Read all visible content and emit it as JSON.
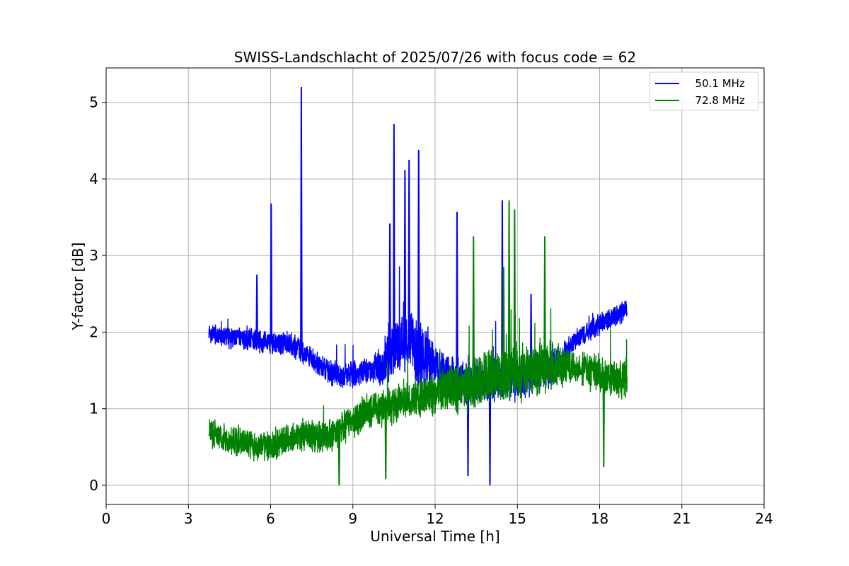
{
  "chart_data": {
    "type": "line",
    "title": "SWISS-Landschlacht of 2025/07/26 with focus code = 62",
    "xlabel": "Universal Time [h]",
    "ylabel": "Y-factor [dB]",
    "xlim": [
      0,
      24
    ],
    "ylim": [
      -0.25,
      5.45
    ],
    "xticks": [
      0,
      3,
      6,
      9,
      12,
      15,
      18,
      21,
      24
    ],
    "yticks": [
      0,
      1,
      2,
      3,
      4,
      5
    ],
    "grid": true,
    "legend_position": "top-right",
    "series": [
      {
        "name": "  50.1 MHz",
        "color": "#0000ff",
        "x": [
          3.75,
          4.0,
          4.5,
          5.0,
          5.5,
          6.0,
          6.5,
          7.0,
          7.5,
          8.0,
          8.5,
          9.0,
          9.5,
          10.0,
          10.5,
          11.0,
          11.5,
          12.0,
          12.5,
          13.0,
          13.5,
          14.0,
          14.5,
          15.0,
          15.5,
          16.0,
          16.5,
          17.0,
          17.5,
          18.0,
          18.5,
          19.0
        ],
        "values": [
          2.0,
          1.97,
          1.93,
          1.9,
          1.88,
          1.88,
          1.85,
          1.8,
          1.65,
          1.5,
          1.45,
          1.45,
          1.5,
          1.55,
          1.8,
          1.9,
          1.7,
          1.55,
          1.4,
          1.35,
          1.35,
          1.4,
          1.4,
          1.4,
          1.45,
          1.5,
          1.6,
          1.85,
          2.0,
          2.1,
          2.2,
          2.3
        ],
        "spikes": [
          {
            "x": 5.5,
            "y": 2.75
          },
          {
            "x": 6.02,
            "y": 3.68
          },
          {
            "x": 7.12,
            "y": 5.2
          },
          {
            "x": 10.35,
            "y": 3.42
          },
          {
            "x": 10.5,
            "y": 4.72
          },
          {
            "x": 10.9,
            "y": 4.12
          },
          {
            "x": 11.05,
            "y": 4.25
          },
          {
            "x": 11.4,
            "y": 4.38
          },
          {
            "x": 12.8,
            "y": 3.57
          },
          {
            "x": 14.45,
            "y": 3.72
          },
          {
            "x": 15.5,
            "y": 2.5
          },
          {
            "x": 14.0,
            "y": 0.0
          },
          {
            "x": 13.2,
            "y": 0.12
          }
        ]
      },
      {
        "name": "  72.8 MHz",
        "color": "#008000",
        "x": [
          3.75,
          4.0,
          4.5,
          5.0,
          5.5,
          6.0,
          6.5,
          7.0,
          7.5,
          8.0,
          8.5,
          9.0,
          9.5,
          10.0,
          10.5,
          11.0,
          11.5,
          12.0,
          12.5,
          13.0,
          13.5,
          14.0,
          14.5,
          15.0,
          15.5,
          16.0,
          16.5,
          17.0,
          17.5,
          18.0,
          18.5,
          19.0
        ],
        "values": [
          0.7,
          0.65,
          0.6,
          0.55,
          0.52,
          0.5,
          0.58,
          0.65,
          0.65,
          0.62,
          0.7,
          0.85,
          0.95,
          1.0,
          1.05,
          1.12,
          1.15,
          1.2,
          1.25,
          1.3,
          1.35,
          1.4,
          1.45,
          1.45,
          1.5,
          1.55,
          1.55,
          1.55,
          1.5,
          1.45,
          1.4,
          1.4
        ],
        "spikes": [
          {
            "x": 13.4,
            "y": 3.25
          },
          {
            "x": 14.5,
            "y": 2.85
          },
          {
            "x": 14.7,
            "y": 3.72
          },
          {
            "x": 14.9,
            "y": 3.6
          },
          {
            "x": 16.0,
            "y": 3.25
          },
          {
            "x": 8.5,
            "y": 0.0
          },
          {
            "x": 18.15,
            "y": 0.24
          },
          {
            "x": 10.2,
            "y": 0.08
          }
        ]
      }
    ]
  }
}
